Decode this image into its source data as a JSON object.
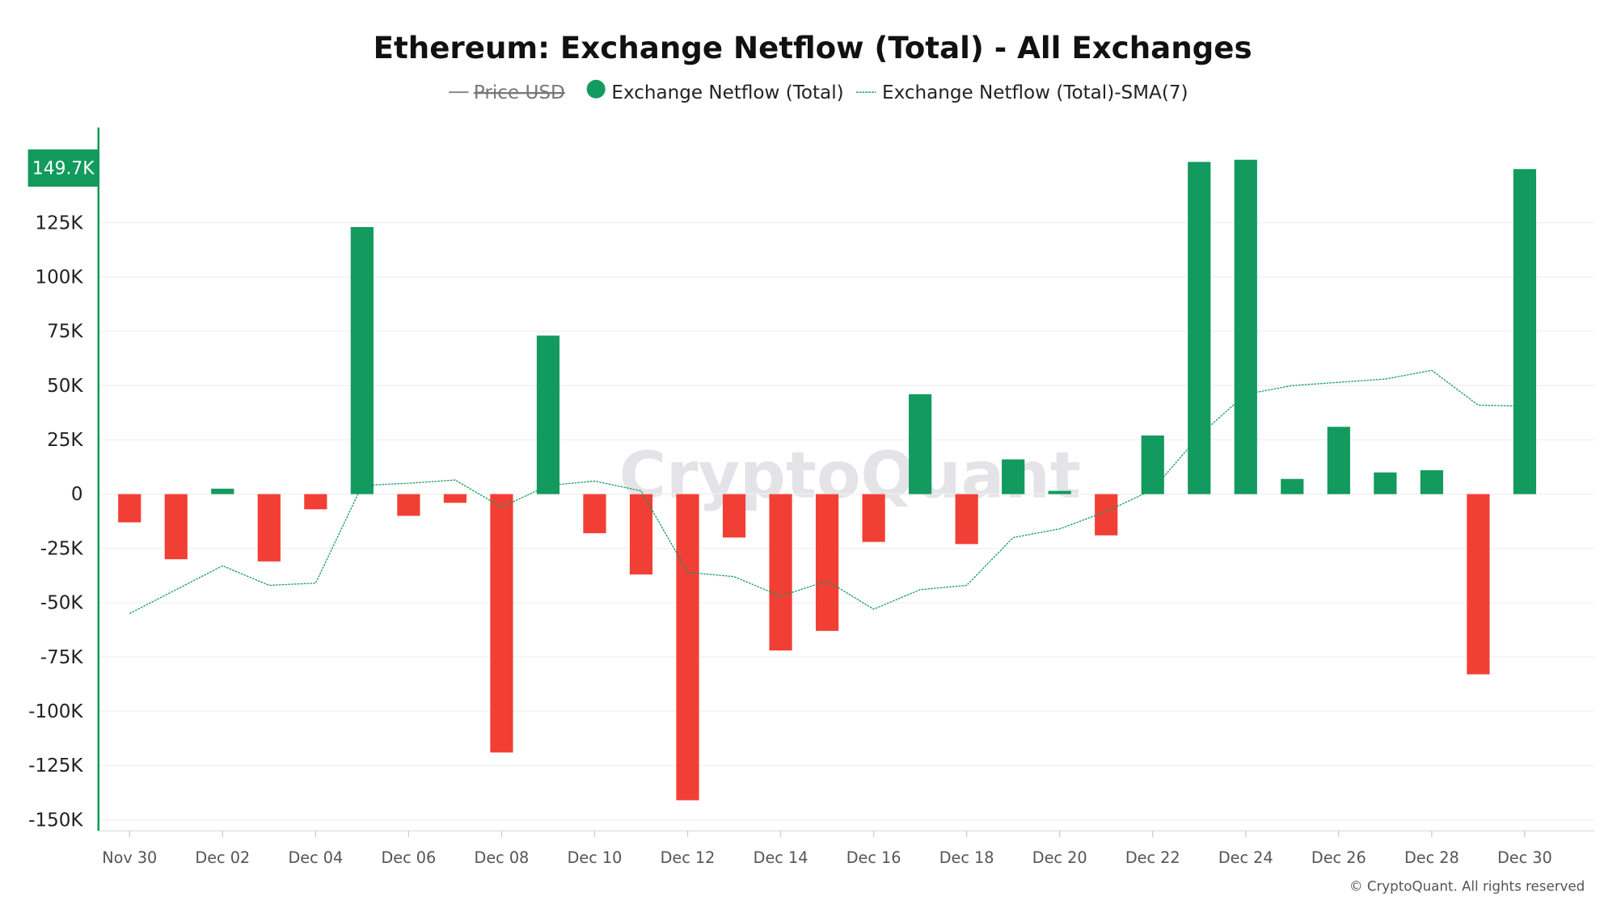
{
  "chart_data": {
    "type": "bar",
    "title": "Ethereum: Exchange Netflow (Total) - All Exchanges",
    "legend": [
      {
        "label": "Price USD",
        "hidden": true,
        "color": "#888888"
      },
      {
        "label": "Exchange Netflow (Total)",
        "color": "#139a5e"
      },
      {
        "label": "Exchange Netflow (Total)-SMA(7)",
        "color": "#139a5e"
      }
    ],
    "legend_position": "top-center",
    "x": [
      "Nov 30",
      "Dec 01",
      "Dec 02",
      "Dec 03",
      "Dec 04",
      "Dec 05",
      "Dec 06",
      "Dec 07",
      "Dec 08",
      "Dec 09",
      "Dec 10",
      "Dec 11",
      "Dec 12",
      "Dec 13",
      "Dec 14",
      "Dec 15",
      "Dec 16",
      "Dec 17",
      "Dec 18",
      "Dec 19",
      "Dec 20",
      "Dec 21",
      "Dec 22",
      "Dec 23",
      "Dec 24",
      "Dec 25",
      "Dec 26",
      "Dec 27",
      "Dec 28",
      "Dec 29",
      "Dec 30"
    ],
    "x_tick_labels": [
      "Nov 30",
      "Dec 02",
      "Dec 04",
      "Dec 06",
      "Dec 08",
      "Dec 10",
      "Dec 12",
      "Dec 14",
      "Dec 16",
      "Dec 18",
      "Dec 20",
      "Dec 22",
      "Dec 24",
      "Dec 26",
      "Dec 28",
      "Dec 30"
    ],
    "series": [
      {
        "name": "Exchange Netflow (Total)",
        "type": "bar",
        "unit": "K",
        "values": [
          -13,
          -30,
          2.5,
          -31,
          -7,
          123,
          -10,
          -4,
          -119,
          73,
          -18,
          -37,
          -141,
          -20,
          -72,
          -63,
          -22,
          46,
          -23,
          16,
          1.5,
          -19,
          27,
          153,
          154,
          7,
          31,
          10,
          11,
          -83,
          149.7
        ]
      },
      {
        "name": "Exchange Netflow (Total)-SMA(7)",
        "type": "line",
        "unit": "K",
        "values": [
          -55,
          -44,
          -33,
          -42,
          -41,
          4,
          5,
          6.5,
          -6,
          4,
          6,
          1.5,
          -36,
          -38,
          -47,
          -40,
          -53,
          -44,
          -42,
          -20,
          -16,
          -8,
          2,
          27,
          46,
          50,
          51.5,
          53,
          57,
          41,
          40.5
        ]
      }
    ],
    "y_ticks": [
      "125K",
      "100K",
      "75K",
      "50K",
      "25K",
      "0",
      "-25K",
      "-50K",
      "-75K",
      "-100K",
      "-125K",
      "-150K"
    ],
    "y_tick_values": [
      125,
      100,
      75,
      50,
      25,
      0,
      -25,
      -50,
      -75,
      -100,
      -125,
      -150
    ],
    "ylim": [
      -155,
      160
    ],
    "last_value_label": "149.7K",
    "positive_color": "#139a5e",
    "negative_color": "#f23f35",
    "grid": true,
    "watermark": "CryptoQuant",
    "copyright": "© CryptoQuant. All rights reserved"
  }
}
